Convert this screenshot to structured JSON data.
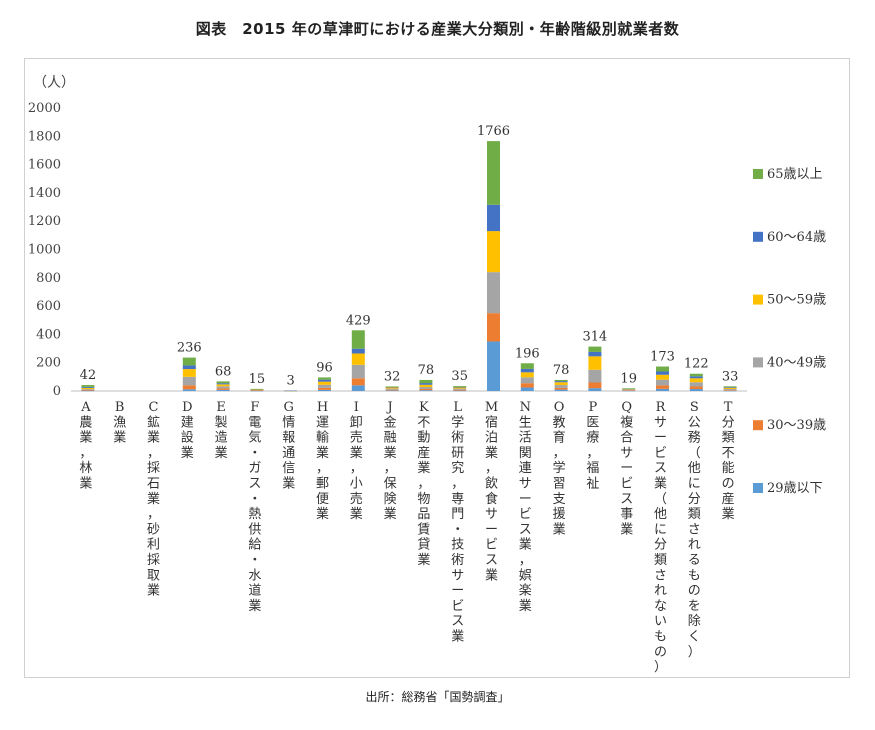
{
  "title": "図表　2015 年の草津町における産業大分類別・年齢階級別就業者数",
  "source": "出所：総務省「国勢調査」",
  "chart_data": {
    "type": "bar",
    "stacked": true,
    "ylabel": "（人）",
    "ylim": [
      0,
      2000
    ],
    "yticks": [
      0,
      200,
      400,
      600,
      800,
      1000,
      1200,
      1400,
      1600,
      1800,
      2000
    ],
    "grid": false,
    "legend_position": "right",
    "categories": [
      "A 農業，林業",
      "B 漁業",
      "C 鉱業，採石業，砂利採取業",
      "D 建設業",
      "E 製造業",
      "F 電気・ガス・熱供給・水道業",
      "G 情報通信業",
      "H 運輸業，郵便業",
      "I 卸売業，小売業",
      "J 金融業，保険業",
      "K 不動産業，物品賃貸業",
      "L 学術研究，専門・技術サービス業",
      "M 宿泊業，飲食サービス業",
      "N 生活関連サービス業，娯楽業",
      "O 教育，学習支援業",
      "P 医療，福祉",
      "Q 複合サービス事業",
      "R サービス業（他に分類されないもの）",
      "S 公務（他に分類されるものを除く）",
      "T 分類不能の産業"
    ],
    "totals": [
      42,
      null,
      null,
      236,
      68,
      15,
      3,
      96,
      429,
      32,
      78,
      35,
      1766,
      196,
      78,
      314,
      19,
      173,
      122,
      33
    ],
    "series": [
      {
        "name": "29歳以下",
        "color": "#5B9BD5",
        "values": [
          3,
          0,
          0,
          12,
          8,
          2,
          0,
          8,
          40,
          4,
          6,
          3,
          350,
          25,
          10,
          20,
          2,
          15,
          14,
          2
        ]
      },
      {
        "name": "30～39歳",
        "color": "#ED7D31",
        "values": [
          4,
          0,
          0,
          28,
          10,
          2,
          0,
          14,
          50,
          5,
          8,
          6,
          200,
          30,
          12,
          40,
          3,
          25,
          18,
          4
        ]
      },
      {
        "name": "40～49歳",
        "color": "#A5A5A5",
        "values": [
          6,
          0,
          0,
          60,
          15,
          4,
          1,
          22,
          95,
          8,
          14,
          8,
          290,
          42,
          20,
          90,
          5,
          40,
          30,
          8
        ]
      },
      {
        "name": "50～59歳",
        "color": "#FFC000",
        "values": [
          9,
          0,
          0,
          55,
          14,
          4,
          1,
          22,
          80,
          8,
          16,
          8,
          290,
          35,
          20,
          95,
          5,
          35,
          28,
          9
        ]
      },
      {
        "name": "60～64歳",
        "color": "#4472C4",
        "values": [
          7,
          0,
          0,
          26,
          8,
          2,
          1,
          14,
          34,
          4,
          12,
          4,
          186,
          24,
          8,
          31,
          2,
          23,
          14,
          5
        ]
      },
      {
        "name": "65歳以上",
        "color": "#70AD47",
        "values": [
          13,
          0,
          0,
          55,
          13,
          1,
          0,
          16,
          130,
          3,
          22,
          6,
          450,
          40,
          8,
          38,
          2,
          35,
          18,
          5
        ]
      }
    ]
  }
}
